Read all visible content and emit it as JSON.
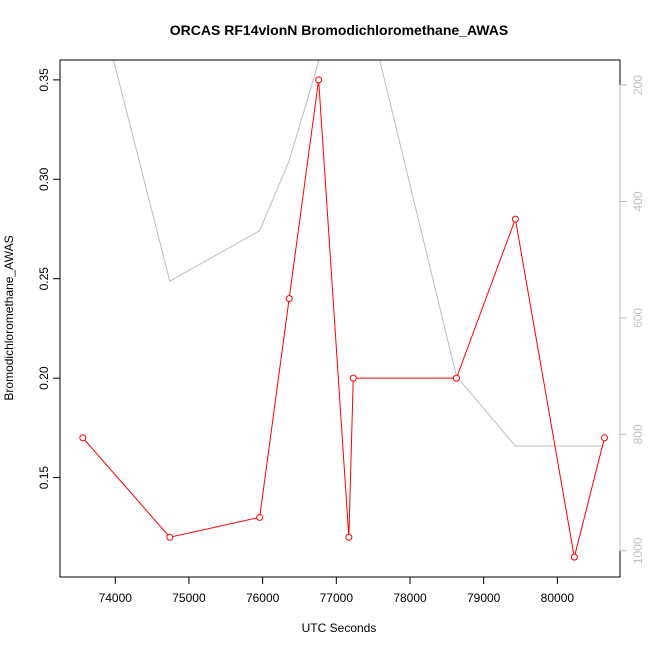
{
  "chart_data": {
    "type": "line",
    "title": "ORCAS RF14vlonN Bromodichloromethane_AWAS",
    "xlabel": "UTC Seconds",
    "ylabel": "Bromodichloromethane_AWAS",
    "xlim": [
      73250,
      80850
    ],
    "ylim": [
      0.1,
      0.36
    ],
    "y2lim": [
      1045,
      157
    ],
    "y2_reversed": true,
    "grid": false,
    "x_ticks": [
      74000,
      75000,
      76000,
      77000,
      78000,
      79000,
      80000
    ],
    "x_tick_labels": [
      "74000",
      "75000",
      "76000",
      "77000",
      "78000",
      "79000",
      "80000"
    ],
    "y_ticks": [
      0.15,
      0.2,
      0.25,
      0.3,
      0.35
    ],
    "y_tick_labels": [
      "0.15",
      "0.20",
      "0.25",
      "0.30",
      "0.35"
    ],
    "y2_ticks": [
      200,
      400,
      600,
      800,
      1000
    ],
    "y2_tick_labels": [
      "200",
      "400",
      "600",
      "800",
      "1000"
    ],
    "series": [
      {
        "color": "#ff0000",
        "axis": "left",
        "markers": true,
        "x": [
          73560,
          74740,
          75960,
          76360,
          76760,
          77170,
          77230,
          78630,
          79430,
          80230,
          80640
        ],
        "y": [
          0.17,
          0.12,
          0.13,
          0.24,
          0.35,
          0.12,
          0.2,
          0.2,
          0.28,
          0.11,
          0.17
        ]
      },
      {
        "color": "#bebebe",
        "axis": "right",
        "markers": false,
        "x": [
          73560,
          74740,
          75960,
          76360,
          76760,
          77170,
          77230,
          78630,
          79430,
          80230,
          80640
        ],
        "y": [
          -50,
          537,
          450,
          330,
          160,
          -60,
          -30,
          700,
          820,
          820,
          820
        ]
      }
    ],
    "colors": {
      "axis": "#000000",
      "right_axis": "#bebebe",
      "primary_series": "#ff0000",
      "secondary_series": "#bebebe"
    }
  }
}
